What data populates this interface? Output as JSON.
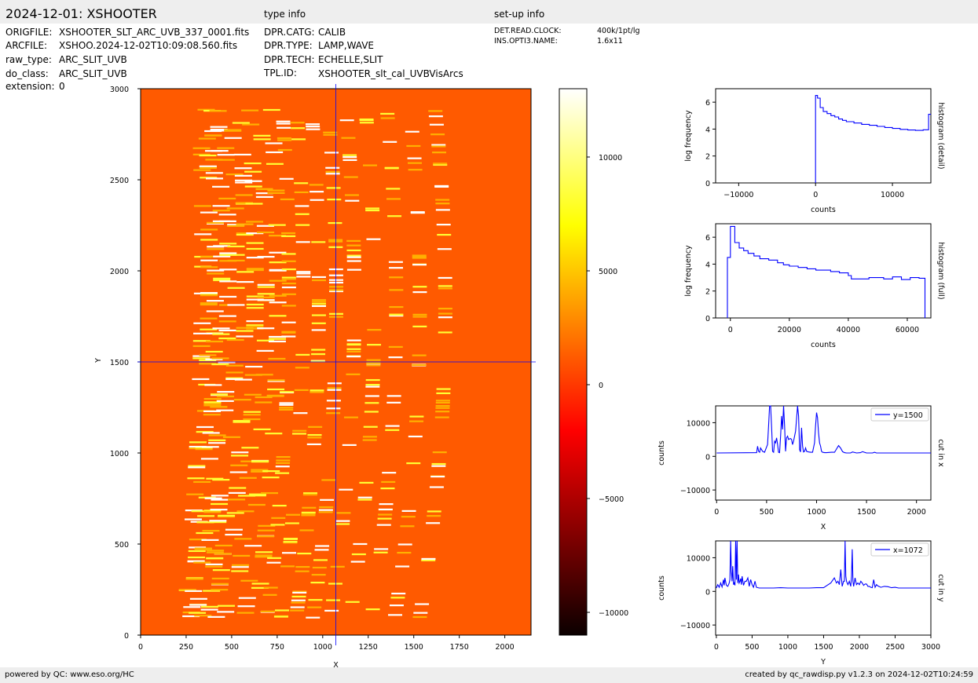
{
  "header": {
    "title": "2024-12-01: XSHOOTER",
    "type_info_label": "type info",
    "setup_info_label": "set-up info"
  },
  "file_info": [
    {
      "key": "ORIGFILE:",
      "value": "XSHOOTER_SLT_ARC_UVB_337_0001.fits"
    },
    {
      "key": "ARCFILE:",
      "value": "XSHOO.2024-12-02T10:09:08.560.fits"
    },
    {
      "key": "raw_type:",
      "value": "ARC_SLIT_UVB"
    },
    {
      "key": "do_class:",
      "value": "ARC_SLIT_UVB"
    },
    {
      "key": "extension:",
      "value": "0"
    }
  ],
  "type_info": [
    {
      "key": "DPR.CATG:",
      "value": "CALIB"
    },
    {
      "key": "DPR.TYPE:",
      "value": "LAMP,WAVE"
    },
    {
      "key": "DPR.TECH:",
      "value": "ECHELLE,SLIT"
    },
    {
      "key": "TPL.ID:",
      "value": "XSHOOTER_slt_cal_UVBVisArcs"
    }
  ],
  "setup_info": [
    {
      "key": "DET.READ.CLOCK:",
      "value": "400k/1pt/lg"
    },
    {
      "key": "INS.OPTI3.NAME:",
      "value": "1.6x11"
    }
  ],
  "footer": {
    "left": "powered by QC: www.eso.org/HC",
    "right": "created by qc_rawdisp.py v1.2.3 on 2024-12-02T10:24:59"
  },
  "colors": {
    "accent": "#0000ff",
    "background_level": "#ff5a00",
    "header_bar": "#eeeeee"
  },
  "chart_data": [
    {
      "type": "heatmap",
      "xlabel": "X",
      "ylabel": "Y",
      "xlim": [
        0,
        2144
      ],
      "ylim": [
        0,
        3000
      ],
      "xticks": [
        0,
        250,
        500,
        750,
        1000,
        1250,
        1500,
        1750,
        2000
      ],
      "yticks": [
        0,
        500,
        1000,
        1500,
        2000,
        2500,
        3000
      ],
      "crosshair": {
        "x": 1072,
        "y": 1500
      },
      "colormap": "hot",
      "colorbar": {
        "range": [
          -11000,
          13000
        ],
        "ticks": [
          -10000,
          -5000,
          0,
          5000,
          10000
        ]
      }
    },
    {
      "type": "line",
      "xlabel": "counts",
      "ylabel": "log frequency",
      "side_label": "histogram (detail)",
      "xlim": [
        -13000,
        15000
      ],
      "ylim": [
        0,
        7
      ],
      "xticks": [
        -10000,
        0,
        10000
      ],
      "yticks": [
        0,
        2,
        4,
        6
      ],
      "x": [
        0,
        0,
        250,
        250,
        600,
        600,
        1000,
        1000,
        1500,
        1500,
        2000,
        2000,
        2500,
        2500,
        3000,
        3000,
        3500,
        3500,
        4000,
        4000,
        5000,
        5000,
        6000,
        6000,
        7000,
        7000,
        8000,
        8000,
        9000,
        9000,
        10000,
        10000,
        11000,
        11000,
        12000,
        12000,
        13000,
        13000,
        14000,
        14000,
        14700,
        14700,
        15000
      ],
      "y": [
        0,
        6.5,
        6.5,
        6.3,
        6.3,
        5.6,
        5.6,
        5.3,
        5.3,
        5.15,
        5.15,
        5.0,
        5.0,
        4.9,
        4.9,
        4.75,
        4.75,
        4.65,
        4.65,
        4.55,
        4.55,
        4.45,
        4.45,
        4.35,
        4.35,
        4.28,
        4.28,
        4.2,
        4.2,
        4.12,
        4.12,
        4.05,
        4.05,
        3.98,
        3.98,
        3.93,
        3.93,
        3.9,
        3.9,
        3.95,
        3.95,
        5.1,
        5.1
      ]
    },
    {
      "type": "line",
      "xlabel": "counts",
      "ylabel": "log frequency",
      "side_label": "histogram (full)",
      "xlim": [
        -5000,
        68000
      ],
      "ylim": [
        0,
        7
      ],
      "xticks": [
        0,
        20000,
        40000,
        60000
      ],
      "yticks": [
        0,
        2,
        4,
        6
      ],
      "x": [
        -1000,
        -1000,
        0,
        0,
        1500,
        1500,
        3000,
        3000,
        4500,
        4500,
        6000,
        6000,
        8000,
        8000,
        10000,
        10000,
        13000,
        13000,
        16000,
        16000,
        18000,
        18000,
        20000,
        20000,
        23000,
        23000,
        26000,
        26000,
        29000,
        29000,
        34000,
        34000,
        37000,
        37000,
        40000,
        40000,
        41000,
        41000,
        47000,
        47000,
        52000,
        52000,
        55000,
        55000,
        58000,
        58000,
        61000,
        61000,
        64000,
        64000,
        66000,
        66000
      ],
      "y": [
        0,
        4.5,
        4.5,
        6.8,
        6.8,
        5.6,
        5.6,
        5.2,
        5.2,
        5.0,
        5.0,
        4.8,
        4.8,
        4.6,
        4.6,
        4.4,
        4.4,
        4.3,
        4.3,
        4.1,
        4.1,
        3.95,
        3.95,
        3.85,
        3.85,
        3.75,
        3.75,
        3.65,
        3.65,
        3.55,
        3.55,
        3.45,
        3.45,
        3.35,
        3.35,
        3.15,
        3.15,
        2.9,
        2.9,
        3.0,
        3.0,
        2.9,
        2.9,
        3.05,
        3.05,
        2.85,
        2.85,
        3.0,
        3.0,
        2.95,
        2.95,
        0
      ]
    },
    {
      "type": "line",
      "xlabel": "X",
      "ylabel": "counts",
      "side_label": "cut in x",
      "legend": "y=1500",
      "xlim": [
        -10,
        2144
      ],
      "ylim": [
        -13000,
        15000
      ],
      "xticks": [
        0,
        500,
        1000,
        1500,
        2000
      ],
      "yticks": [
        -10000,
        0,
        10000
      ],
      "x": [
        0,
        400,
        410,
        420,
        430,
        440,
        460,
        480,
        500,
        510,
        520,
        530,
        540,
        550,
        560,
        570,
        580,
        590,
        600,
        610,
        620,
        630,
        640,
        650,
        660,
        670,
        680,
        690,
        700,
        710,
        720,
        730,
        740,
        750,
        760,
        770,
        780,
        790,
        800,
        810,
        820,
        830,
        840,
        850,
        860,
        870,
        880,
        890,
        900,
        920,
        940,
        960,
        980,
        990,
        1000,
        1010,
        1020,
        1030,
        1040,
        1050,
        1060,
        1080,
        1100,
        1150,
        1180,
        1200,
        1220,
        1240,
        1260,
        1280,
        1300,
        1320,
        1340,
        1360,
        1400,
        1440,
        1460,
        1500,
        1540,
        1560,
        1580,
        1600,
        1800,
        2144
      ],
      "y": [
        1000,
        1100,
        3000,
        1500,
        1200,
        2500,
        1500,
        1200,
        2800,
        3500,
        9000,
        20000,
        20000,
        9000,
        1500,
        1200,
        4500,
        4000,
        5500,
        3500,
        1200,
        1100,
        6000,
        12000,
        8000,
        20000,
        9000,
        1500,
        5500,
        6000,
        5000,
        5200,
        5300,
        5000,
        3500,
        4500,
        6000,
        7500,
        11000,
        20000,
        12000,
        2000,
        1300,
        8500,
        3000,
        1300,
        1500,
        2500,
        1500,
        1300,
        1200,
        1200,
        4000,
        9000,
        13000,
        11500,
        7000,
        4000,
        3000,
        1500,
        1200,
        1100,
        1100,
        1200,
        1200,
        2200,
        3200,
        2500,
        1400,
        1100,
        1000,
        1000,
        1000,
        1300,
        1000,
        1100,
        1400,
        1000,
        1000,
        1000,
        1200,
        1000,
        1000,
        1000
      ]
    },
    {
      "type": "line",
      "xlabel": "Y",
      "ylabel": "counts",
      "side_label": "cut in y",
      "legend": "x=1072",
      "xlim": [
        -10,
        3000
      ],
      "ylim": [
        -13000,
        15000
      ],
      "xticks": [
        0,
        500,
        1000,
        1500,
        2000,
        2500,
        3000
      ],
      "yticks": [
        -10000,
        0,
        10000
      ],
      "x": [
        0,
        20,
        40,
        60,
        80,
        100,
        110,
        120,
        140,
        160,
        180,
        190,
        200,
        210,
        220,
        230,
        240,
        250,
        260,
        270,
        280,
        290,
        300,
        310,
        320,
        330,
        340,
        350,
        360,
        380,
        400,
        420,
        440,
        460,
        480,
        500,
        520,
        540,
        560,
        600,
        700,
        800,
        900,
        1000,
        1100,
        1200,
        1300,
        1400,
        1500,
        1550,
        1600,
        1650,
        1680,
        1700,
        1720,
        1740,
        1760,
        1780,
        1790,
        1800,
        1810,
        1820,
        1840,
        1860,
        1880,
        1890,
        1900,
        1910,
        1920,
        1940,
        1960,
        1980,
        2000,
        2020,
        2040,
        2060,
        2080,
        2100,
        2120,
        2140,
        2160,
        2180,
        2200,
        2220,
        2240,
        2260,
        2280,
        2300,
        2350,
        2400,
        2450,
        2500,
        2550,
        2600,
        3000
      ],
      "y": [
        1000,
        2000,
        1200,
        2500,
        1300,
        3500,
        1800,
        4000,
        1800,
        1500,
        2500,
        3500,
        20000,
        6000,
        3000,
        7500,
        2000,
        2500,
        1800,
        20000,
        3500,
        20000,
        2500,
        5000,
        2500,
        3000,
        3800,
        2000,
        4500,
        1800,
        3000,
        3000,
        4000,
        1500,
        3500,
        2000,
        1200,
        3000,
        1200,
        1000,
        1000,
        1000,
        1100,
        1000,
        1000,
        1000,
        1000,
        1100,
        1100,
        1800,
        2500,
        4000,
        2500,
        3000,
        2000,
        6500,
        1500,
        3000,
        3000,
        20000,
        4500,
        3000,
        2000,
        3000,
        1500,
        4500,
        12500,
        3000,
        1500,
        4000,
        2000,
        2500,
        2000,
        3000,
        2500,
        1800,
        2200,
        2200,
        1500,
        1500,
        1200,
        1100,
        3500,
        1200,
        2000,
        1600,
        1400,
        1200,
        1500,
        1400,
        1100,
        1200,
        1000,
        1000,
        1000
      ]
    }
  ]
}
